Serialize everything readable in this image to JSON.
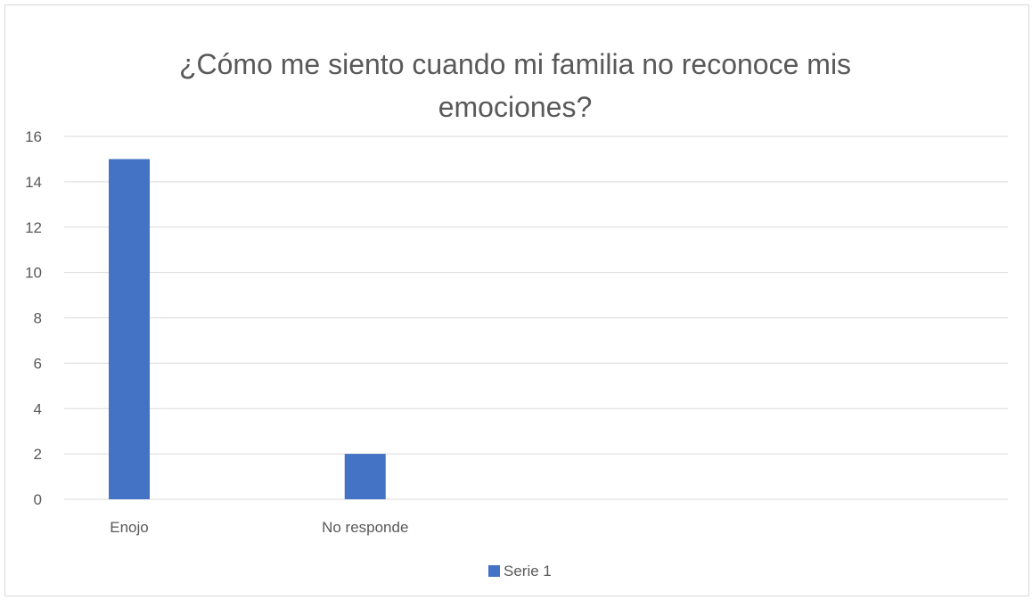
{
  "chart_data": {
    "type": "bar",
    "title_lines": [
      "¿Cómo me siento cuando mi familia no reconoce mis",
      "emociones?"
    ],
    "categories": [
      "Enojo",
      "No responde",
      "",
      ""
    ],
    "series": [
      {
        "name": "Serie 1",
        "values": [
          15,
          2,
          null,
          null
        ],
        "color": "#4472c4"
      }
    ],
    "ylim": [
      0,
      16
    ],
    "yticks": [
      0,
      2,
      4,
      6,
      8,
      10,
      12,
      14,
      16
    ],
    "grid": true,
    "legend_position": "bottom"
  },
  "colors": {
    "gridline": "#d9d9d9",
    "text": "#595959",
    "border": "#d9d9d9"
  }
}
